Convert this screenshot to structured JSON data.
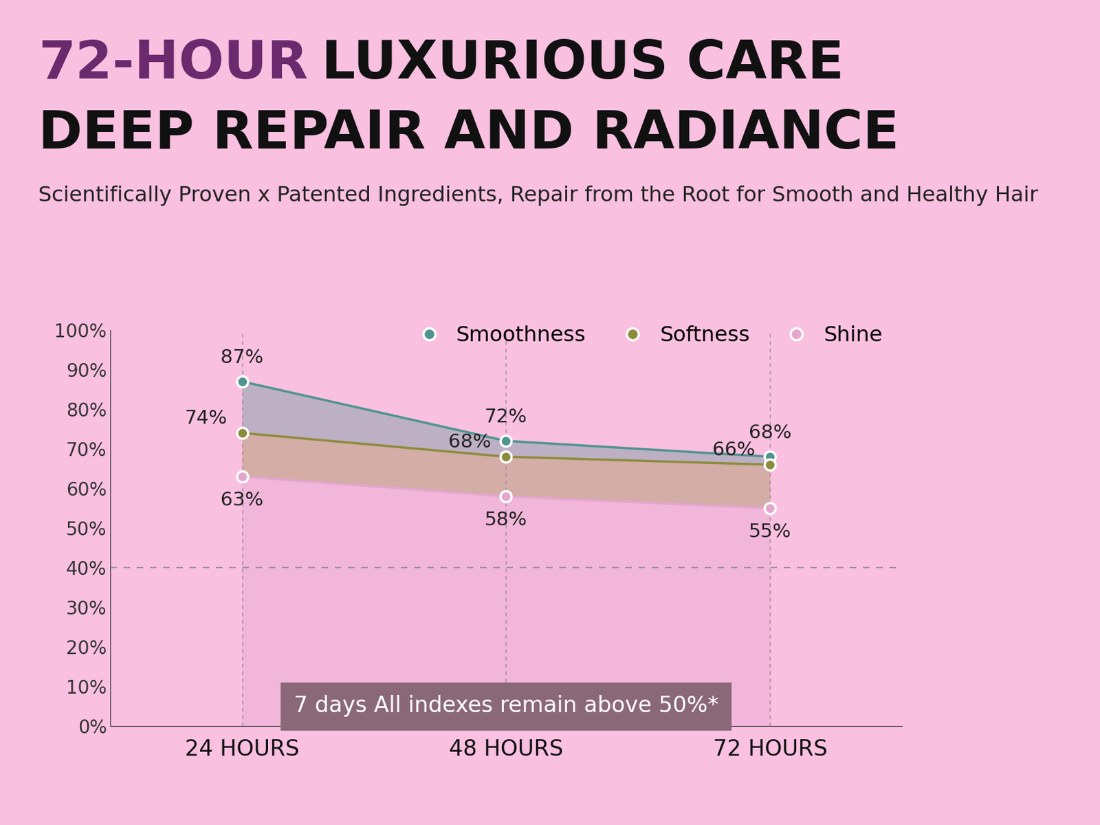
{
  "chart_data": {
    "type": "line",
    "title": "72-HOUR LUXURIOUS CARE\nDEEP REPAIR AND RADIANCE",
    "subtitle": "Scientifically Proven x Patented Ingredients, Repair from the Root for Smooth and Healthy Hair",
    "annotation": "7 days All indexes remain above 50%*",
    "categories": [
      "24 HOURS",
      "48 HOURS",
      "72 HOURS"
    ],
    "series": [
      {
        "name": "Smoothness",
        "color": "#4f9490",
        "marker": "o",
        "line_style": "solid",
        "values": [
          87,
          72,
          68
        ],
        "value_labels": [
          "87%",
          "72%",
          "68%"
        ]
      },
      {
        "name": "Softness",
        "color": "#8c8c3c",
        "marker": "o",
        "line_style": "solid",
        "values": [
          74,
          68,
          66
        ],
        "value_labels": [
          "74%",
          "68%",
          "66%"
        ]
      },
      {
        "name": "Shine",
        "color": "#e3a6cc",
        "marker": "o",
        "line_style": "solid",
        "values": [
          63,
          58,
          55
        ],
        "value_labels": [
          "63%",
          "58%",
          "55%"
        ]
      }
    ],
    "ylim": [
      0,
      100
    ],
    "yticks": [
      {
        "value": 0,
        "label": "0%"
      },
      {
        "value": 10,
        "label": "10%"
      },
      {
        "value": 20,
        "label": "20%"
      },
      {
        "value": 30,
        "label": "30%"
      },
      {
        "value": 40,
        "label": "40%"
      },
      {
        "value": 50,
        "label": "50%"
      },
      {
        "value": 60,
        "label": "60%"
      },
      {
        "value": 70,
        "label": "70%"
      },
      {
        "value": 80,
        "label": "80%"
      },
      {
        "value": 90,
        "label": "90%"
      },
      {
        "value": 100,
        "label": "100%"
      }
    ],
    "reference_line": 40,
    "grid": true,
    "legend": "upper right",
    "data_labels": true
  }
}
